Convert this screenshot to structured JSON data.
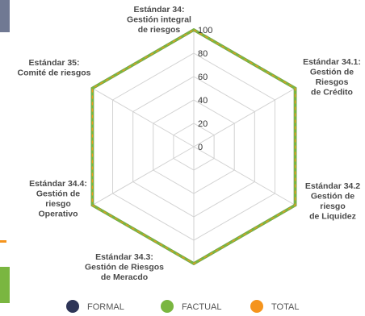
{
  "chart_data": {
    "type": "radar",
    "axes": [
      [
        "Estándar 34:",
        "Gestión integral",
        "de riesgos"
      ],
      [
        "Estándar 34.1:",
        "Gestión de",
        "Riesgos",
        "de Crédito"
      ],
      [
        "Estándar 34.2",
        "Gestión de",
        "riesgo",
        "de Liquidez"
      ],
      [
        "Estándar 34.3:",
        "Gestión de Riesgos",
        "de Meracdo"
      ],
      [
        "Estándar 34.4:",
        "Gestión de",
        "riesgo",
        "Operativo"
      ],
      [
        "Estándar 35:",
        "Comité de riesgos"
      ]
    ],
    "ticks": [
      "0",
      "20",
      "40",
      "60",
      "80",
      "100"
    ],
    "rlim": [
      0,
      100
    ],
    "grid": true,
    "legend_position": "bottom",
    "series": [
      {
        "name": "FORMAL",
        "values": [
          100,
          100,
          100,
          100,
          100,
          100
        ],
        "color": "#2e3557"
      },
      {
        "name": "FACTUAL",
        "values": [
          100,
          100,
          100,
          100,
          100,
          100
        ],
        "color": "#7ab640"
      },
      {
        "name": "TOTAL",
        "values": [
          100,
          100,
          100,
          100,
          100,
          100
        ],
        "color": "#f5941d"
      }
    ]
  },
  "colors": {
    "left_bar_top": "#707993",
    "left_bar_mid": "#f5941d",
    "left_bar_bottom": "#7ab640"
  }
}
